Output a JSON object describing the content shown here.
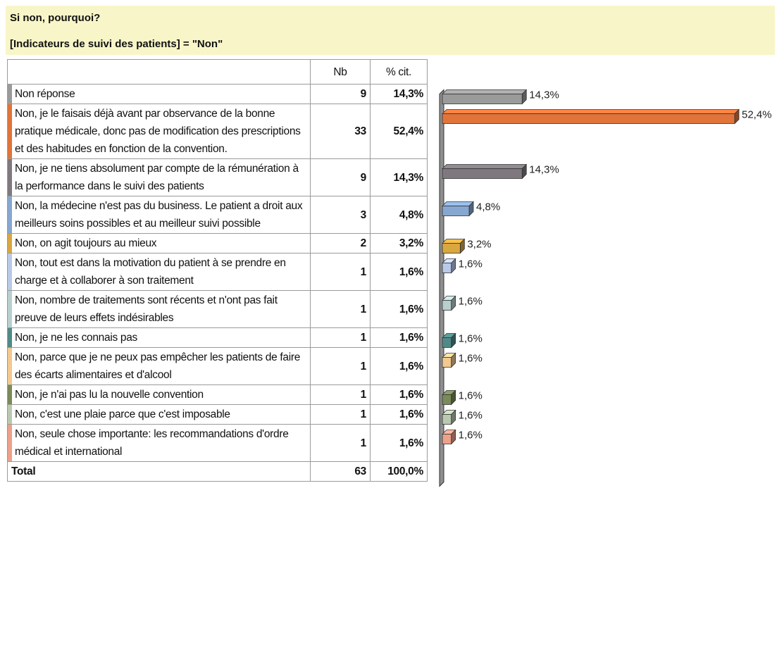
{
  "chart_data": {
    "type": "bar",
    "title": "Si non, pourquoi?",
    "subtitle": "[Indicateurs de suivi des patients] = \"Non\"",
    "columns": [
      "Nb",
      "% cit."
    ],
    "categories": [
      "Non réponse",
      "Non, je le faisais déjà avant par observance de la bonne pratique médicale, donc pas de modification des prescriptions et des habitudes en fonction de la convention.",
      "Non, je ne tiens absolument par compte de la rémunération à la performance dans le suivi des patients",
      "Non, la médecine n'est pas du business. Le patient a droit aux meilleurs soins possibles et au meilleur suivi possible",
      "Non, on agit toujours au mieux",
      "Non, tout est dans la motivation du patient à se prendre en charge et à collaborer à son traitement",
      "Non, nombre de traitements sont récents et n'ont pas fait preuve de leurs effets indésirables",
      "Non, je ne les connais pas",
      "Non, parce que je ne peux pas empêcher les patients de faire des écarts alimentaires et d'alcool",
      "Non, je n'ai pas lu la nouvelle convention",
      "Non, c'est une plaie parce que c'est imposable",
      "Non, seule chose importante: les recommandations d'ordre médical et international"
    ],
    "counts": [
      9,
      33,
      9,
      3,
      2,
      1,
      1,
      1,
      1,
      1,
      1,
      1
    ],
    "values": [
      14.3,
      52.4,
      14.3,
      4.8,
      3.2,
      1.6,
      1.6,
      1.6,
      1.6,
      1.6,
      1.6,
      1.6
    ],
    "value_labels": [
      "14,3%",
      "52,4%",
      "14,3%",
      "4,8%",
      "3,2%",
      "1,6%",
      "1,6%",
      "1,6%",
      "1,6%",
      "1,6%",
      "1,6%",
      "1,6%"
    ],
    "colors": [
      "#9a9a9a",
      "#e0743a",
      "#7f797f",
      "#86a7cf",
      "#d9a740",
      "#b9c9e8",
      "#b8d0cd",
      "#4f8a88",
      "#f2c98f",
      "#7a8a58",
      "#b9c9b0",
      "#eda08a"
    ],
    "total": {
      "label": "Total",
      "count": 63,
      "percent": "100,0%"
    }
  }
}
